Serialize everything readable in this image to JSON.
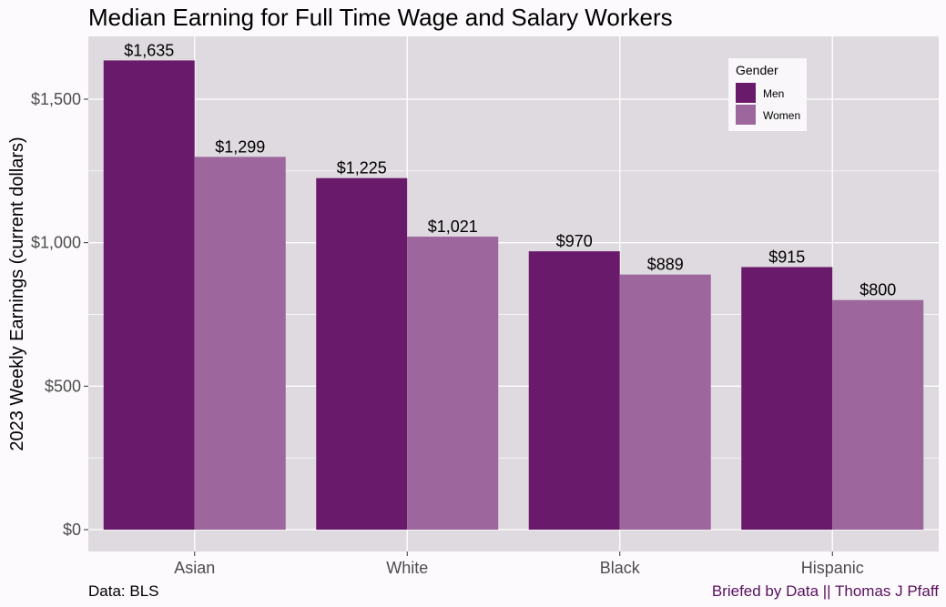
{
  "chart_data": {
    "type": "bar",
    "title": "Median Earning for Full Time Wage and Salary Workers",
    "ylabel": "2023 Weekly Earnings (current dollars)",
    "xlabel": "",
    "categories": [
      "Asian",
      "White",
      "Black",
      "Hispanic"
    ],
    "series": [
      {
        "name": "Men",
        "values": [
          1635,
          1225,
          970,
          915
        ],
        "labels": [
          "$1,635",
          "$1,225",
          "$970",
          "$915"
        ],
        "color": "#6a1a6a"
      },
      {
        "name": "Women",
        "values": [
          1299,
          1021,
          889,
          800
        ],
        "labels": [
          "$1,299",
          "$1,021",
          "$889",
          "$800"
        ],
        "color": "#9d669d"
      }
    ],
    "ylim": [
      0,
      1720
    ],
    "yticks": [
      0,
      500,
      1000,
      1500
    ],
    "ytick_labels": [
      "$0",
      "$500",
      "$1,000",
      "$1,500"
    ],
    "grid": true,
    "legend": {
      "title": "Gender",
      "placement": "top-right"
    },
    "panel_color": "#dfdadf",
    "caption_left": "Data: BLS",
    "caption_right": "Briefed by Data || Thomas J Pfaff",
    "caption_right_color": "#5a1060"
  }
}
